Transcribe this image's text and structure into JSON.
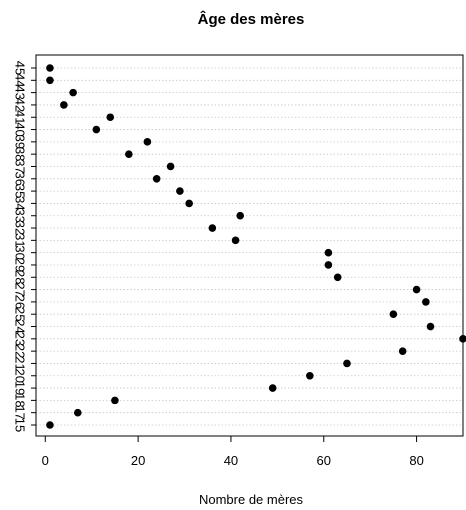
{
  "chart_data": {
    "type": "scatter",
    "title": "Âge des mères",
    "xlabel": "Nombre de mères",
    "ylabel": "",
    "xlim": [
      -2,
      90
    ],
    "xticks": [
      0,
      20,
      40,
      60,
      80
    ],
    "grid": "horizontal dotted",
    "categories": [
      "15",
      "17",
      "18",
      "19",
      "20",
      "21",
      "22",
      "23",
      "24",
      "25",
      "26",
      "27",
      "28",
      "29",
      "30",
      "31",
      "32",
      "33",
      "34",
      "35",
      "36",
      "37",
      "38",
      "39",
      "40",
      "41",
      "42",
      "43",
      "44",
      "45"
    ],
    "values": [
      1,
      7,
      15,
      49,
      57,
      65,
      77,
      90,
      83,
      75,
      82,
      80,
      63,
      61,
      61,
      41,
      36,
      42,
      31,
      29,
      24,
      27,
      18,
      22,
      11,
      14,
      4,
      6,
      1,
      1
    ],
    "color": "#000000"
  }
}
